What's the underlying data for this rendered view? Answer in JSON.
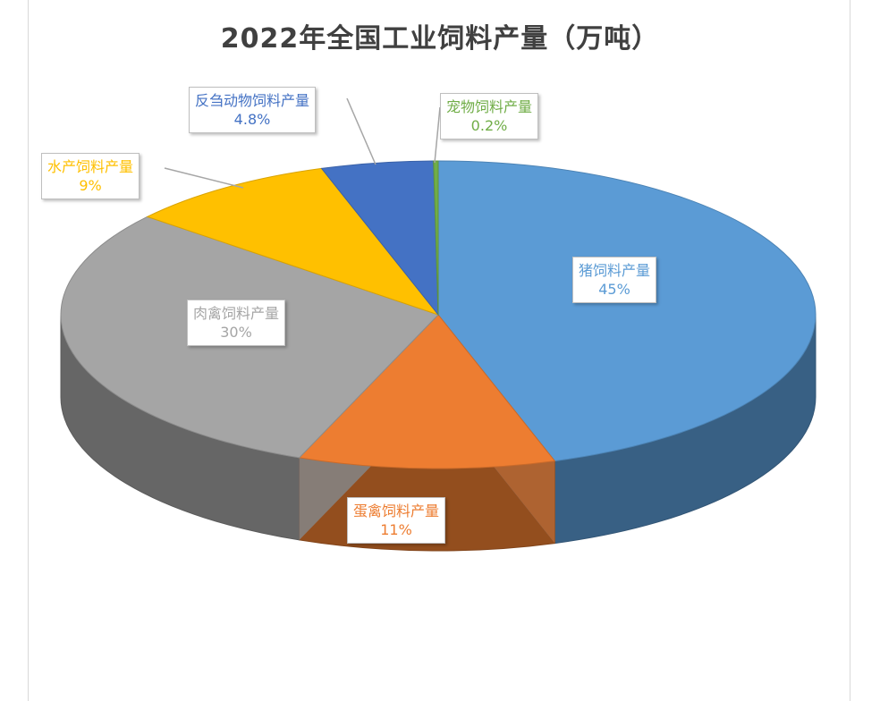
{
  "chart_data": {
    "type": "pie",
    "title": "2022年全国工业饲料产量（万吨）",
    "three_d": true,
    "legend": "none",
    "slices": [
      {
        "name": "猪饲料产量",
        "value": 45,
        "label": "45%",
        "color": "#5b9bd5"
      },
      {
        "name": "蛋禽饲料产量",
        "value": 11,
        "label": "11%",
        "color": "#ed7d31"
      },
      {
        "name": "肉禽饲料产量",
        "value": 30,
        "label": "30%",
        "color": "#a5a5a5"
      },
      {
        "name": "水产饲料产量",
        "value": 9,
        "label": "9%",
        "color": "#ffc000"
      },
      {
        "name": "反刍动物饲料产量",
        "value": 4.8,
        "label": "4.8%",
        "color": "#4472c4"
      },
      {
        "name": "宠物饲料产量",
        "value": 0.2,
        "label": "0.2%",
        "color": "#70ad47"
      }
    ]
  }
}
